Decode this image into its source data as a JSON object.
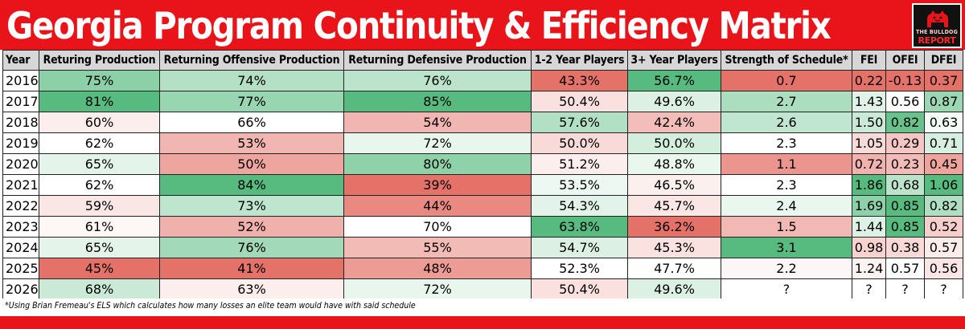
{
  "title": "Georgia Program Continuity & Efficiency Matrix",
  "logo": {
    "line1": "THE BULLDOG",
    "line2": "REPORT",
    "icon": "bulldog-icon"
  },
  "footnote": "*Using Brian Fremeau's ELS which calculates how many losses an elite team would have with said schedule",
  "colors": {
    "title_bg": "#e8141a",
    "header_bg": "#d7d7d7",
    "high_green": "#57bb7f",
    "mid_white": "#ffffff",
    "low_red": "#e57269"
  },
  "chart_data": {
    "type": "table",
    "title": "Georgia Program Continuity & Efficiency Matrix",
    "columns": [
      "Year",
      "Returing Production",
      "Returning Offensive Production",
      "Returning Defensive Production",
      "1-2 Year Players",
      "3+ Year Players",
      "Strength of Schedule*",
      "FEI",
      "OFEI",
      "DFEI"
    ],
    "color_scale": [
      "none",
      "high-good",
      "high-good",
      "high-good",
      "high-good",
      "high-good",
      "high-good",
      "high-good",
      "high-good",
      "high-good"
    ],
    "rows": [
      [
        "2016",
        "75%",
        "74%",
        "76%",
        "43.3%",
        "56.7%",
        "0.7",
        "0.22",
        "-0.13",
        "0.37"
      ],
      [
        "2017",
        "81%",
        "77%",
        "85%",
        "50.4%",
        "49.6%",
        "2.7",
        "1.43",
        "0.56",
        "0.87"
      ],
      [
        "2018",
        "60%",
        "66%",
        "54%",
        "57.6%",
        "42.4%",
        "2.6",
        "1.50",
        "0.82",
        "0.63"
      ],
      [
        "2019",
        "62%",
        "53%",
        "72%",
        "50.0%",
        "50.0%",
        "2.3",
        "1.05",
        "0.29",
        "0.71"
      ],
      [
        "2020",
        "65%",
        "50%",
        "80%",
        "51.2%",
        "48.8%",
        "1.1",
        "0.72",
        "0.23",
        "0.45"
      ],
      [
        "2021",
        "62%",
        "84%",
        "39%",
        "53.5%",
        "46.5%",
        "2.3",
        "1.86",
        "0.68",
        "1.06"
      ],
      [
        "2022",
        "59%",
        "73%",
        "44%",
        "54.3%",
        "45.7%",
        "2.4",
        "1.69",
        "0.85",
        "0.82"
      ],
      [
        "2023",
        "61%",
        "52%",
        "70%",
        "63.8%",
        "36.2%",
        "1.5",
        "1.44",
        "0.85",
        "0.52"
      ],
      [
        "2024",
        "65%",
        "76%",
        "55%",
        "54.7%",
        "45.3%",
        "3.1",
        "0.98",
        "0.38",
        "0.57"
      ],
      [
        "2025",
        "45%",
        "41%",
        "48%",
        "52.3%",
        "47.7%",
        "2.2",
        "1.24",
        "0.57",
        "0.56"
      ],
      [
        "2026",
        "68%",
        "63%",
        "72%",
        "50.4%",
        "49.6%",
        "?",
        "?",
        "?",
        "?"
      ]
    ]
  }
}
